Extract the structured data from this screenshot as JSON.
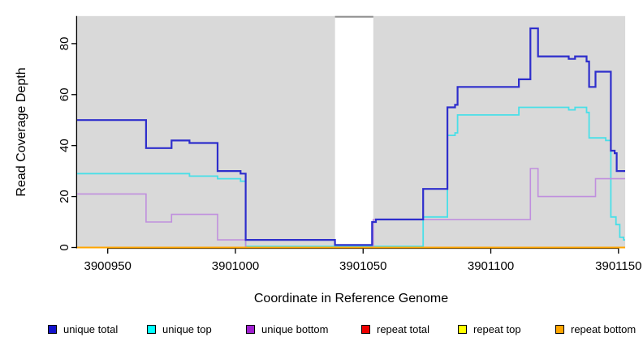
{
  "figure": {
    "background": "#FFFFFF",
    "plot_background": "#D9D9D9",
    "axis_color": "#000000",
    "gap_band": {
      "fill": "#FFFFFF",
      "top_border_color": "#8F8F8F"
    }
  },
  "axes": {
    "x": {
      "label": "Coordinate in Reference Genome",
      "ticks": [
        {
          "value": 3900950,
          "label": "3900950"
        },
        {
          "value": 3901000,
          "label": "3901000"
        },
        {
          "value": 3901050,
          "label": "3901050"
        },
        {
          "value": 3901100,
          "label": "3901100"
        },
        {
          "value": 3901150,
          "label": "3901150"
        }
      ]
    },
    "y": {
      "label": "Read Coverage Depth",
      "ticks": [
        {
          "value": 0,
          "label": "0"
        },
        {
          "value": 20,
          "label": "20"
        },
        {
          "value": 40,
          "label": "40"
        },
        {
          "value": 60,
          "label": "60"
        },
        {
          "value": 80,
          "label": "80"
        }
      ]
    }
  },
  "chart_data": {
    "type": "line",
    "subtype": "step-coverage",
    "title": "",
    "xlabel": "Coordinate in Reference Genome",
    "ylabel": "Read Coverage Depth",
    "xlim": [
      3900938,
      3901153
    ],
    "ylim": [
      0,
      90
    ],
    "grid": false,
    "legend_position": "bottom",
    "x_end": 3901152.6,
    "gap_region": {
      "x_start": 3901039,
      "x_end": 3901054
    },
    "series": [
      {
        "name": "unique total",
        "color": "#2E2ECC",
        "width": 2.2,
        "points": [
          [
            3900938,
            50
          ],
          [
            3900965,
            39
          ],
          [
            3900975,
            42
          ],
          [
            3900982,
            41
          ],
          [
            3900993,
            30
          ],
          [
            3901002,
            29
          ],
          [
            3901004,
            3
          ],
          [
            3901039,
            1
          ],
          [
            3901053.5,
            10
          ],
          [
            3901055,
            11
          ],
          [
            3901073.5,
            23
          ],
          [
            3901083,
            55
          ],
          [
            3901086,
            56
          ],
          [
            3901087,
            63
          ],
          [
            3901111,
            66
          ],
          [
            3901115.5,
            86
          ],
          [
            3901118.5,
            75
          ],
          [
            3901130.5,
            74
          ],
          [
            3901133,
            75
          ],
          [
            3901137.5,
            73
          ],
          [
            3901138.5,
            63
          ],
          [
            3901141,
            69
          ],
          [
            3901147,
            38
          ],
          [
            3901148.5,
            37
          ],
          [
            3901149.3,
            30
          ]
        ]
      },
      {
        "name": "unique top",
        "color": "#49DFE8",
        "width": 1.8,
        "points": [
          [
            3900938,
            29
          ],
          [
            3900982,
            28
          ],
          [
            3900993,
            27
          ],
          [
            3901002,
            26
          ],
          [
            3901004,
            0
          ],
          [
            3901073.5,
            12
          ],
          [
            3901083,
            44
          ],
          [
            3901086,
            45
          ],
          [
            3901087,
            52
          ],
          [
            3901111,
            55
          ],
          [
            3901130.5,
            54
          ],
          [
            3901133,
            55
          ],
          [
            3901137.5,
            53
          ],
          [
            3901138.5,
            43
          ],
          [
            3901145,
            42
          ],
          [
            3901147,
            12
          ],
          [
            3901149,
            9
          ],
          [
            3901150.5,
            4
          ],
          [
            3901152,
            3
          ]
        ]
      },
      {
        "name": "unique bottom",
        "color": "#C08FDE",
        "width": 1.6,
        "points": [
          [
            3900938,
            21
          ],
          [
            3900965,
            10
          ],
          [
            3900975,
            13
          ],
          [
            3900993,
            3
          ],
          [
            3901004,
            0
          ],
          [
            3901054,
            11
          ],
          [
            3901115.5,
            31
          ],
          [
            3901118.5,
            20
          ],
          [
            3901141,
            27
          ]
        ]
      },
      {
        "name": "repeat total",
        "color": "#EE0000",
        "width": 1.5,
        "points": [
          [
            3900938,
            0
          ]
        ]
      },
      {
        "name": "repeat top",
        "color": "#FFFF00",
        "width": 1.5,
        "points": [
          [
            3900938,
            0
          ]
        ]
      },
      {
        "name": "repeat bottom",
        "color": "#FFA500",
        "width": 2.0,
        "points": [
          [
            3900938,
            0
          ]
        ]
      }
    ]
  },
  "legend": {
    "items": [
      {
        "label": "unique total",
        "swatch": "#1414CC"
      },
      {
        "label": "unique top",
        "swatch": "#00FFFF"
      },
      {
        "label": "unique bottom",
        "swatch": "#A020D0"
      },
      {
        "label": "repeat total",
        "swatch": "#EE0000"
      },
      {
        "label": "repeat top",
        "swatch": "#FFFF00"
      },
      {
        "label": "repeat bottom",
        "swatch": "#FFA500"
      }
    ]
  }
}
